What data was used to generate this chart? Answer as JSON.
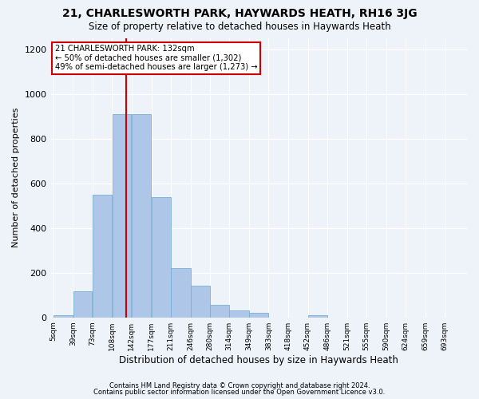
{
  "title": "21, CHARLESWORTH PARK, HAYWARDS HEATH, RH16 3JG",
  "subtitle": "Size of property relative to detached houses in Haywards Heath",
  "xlabel": "Distribution of detached houses by size in Haywards Heath",
  "ylabel": "Number of detached properties",
  "footer_line1": "Contains HM Land Registry data © Crown copyright and database right 2024.",
  "footer_line2": "Contains public sector information licensed under the Open Government Licence v3.0.",
  "bar_labels": [
    "5sqm",
    "39sqm",
    "73sqm",
    "108sqm",
    "142sqm",
    "177sqm",
    "211sqm",
    "246sqm",
    "280sqm",
    "314sqm",
    "349sqm",
    "383sqm",
    "418sqm",
    "452sqm",
    "486sqm",
    "521sqm",
    "555sqm",
    "590sqm",
    "624sqm",
    "659sqm",
    "693sqm"
  ],
  "bar_values": [
    8,
    115,
    548,
    910,
    910,
    538,
    220,
    140,
    55,
    32,
    20,
    0,
    0,
    10,
    0,
    0,
    0,
    0,
    0,
    0,
    0
  ],
  "bar_color": "#aec6e8",
  "bar_edge_color": "#7aafd4",
  "property_size": 132,
  "property_line_label": "21 CHARLESWORTH PARK: 132sqm",
  "annotation_line1": "← 50% of detached houses are smaller (1,302)",
  "annotation_line2": "49% of semi-detached houses are larger (1,273) →",
  "annotation_box_facecolor": "#ffffff",
  "annotation_box_edgecolor": "#cc0000",
  "vline_color": "#cc0000",
  "ylim": [
    0,
    1250
  ],
  "bin_edges": [
    5,
    39,
    73,
    108,
    142,
    177,
    211,
    246,
    280,
    314,
    349,
    383,
    418,
    452,
    486,
    521,
    555,
    590,
    624,
    659,
    693,
    727
  ],
  "background_color": "#eef2f9",
  "grid_color": "#ffffff",
  "title_fontsize": 10,
  "subtitle_fontsize": 8.5,
  "ylabel_fontsize": 8,
  "xlabel_fontsize": 8.5
}
